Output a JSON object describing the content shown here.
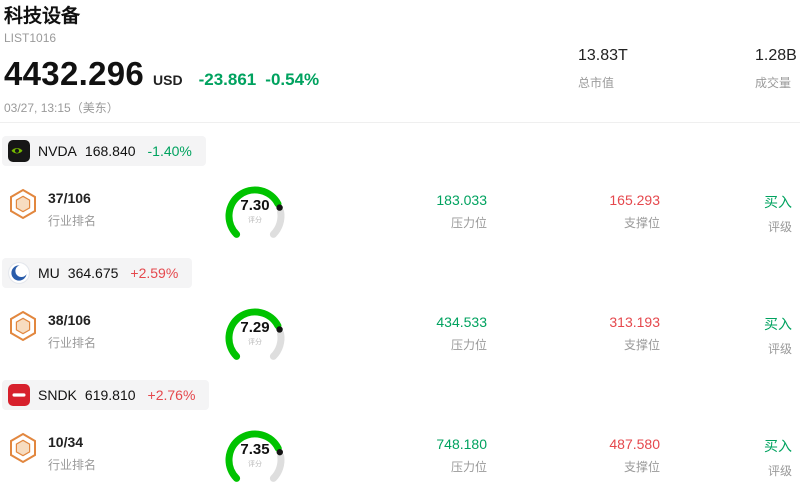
{
  "header": {
    "title": "科技设备",
    "subtitle": "LIST1016",
    "price": "4432.296",
    "currency": "USD",
    "change": "-23.861",
    "change_pct": "-0.54%",
    "change_dir": "down",
    "timestamp": "03/27, 13:15（美东）",
    "stats": [
      {
        "value": "13.83T",
        "label": "总市值"
      },
      {
        "value": "1.28B",
        "label": "成交量"
      }
    ]
  },
  "labels": {
    "rank": "行业排名",
    "score": "评分",
    "pressure": "压力位",
    "support": "支撑位",
    "rating": "评级"
  },
  "colors": {
    "up": "#e5484d",
    "down": "#00a25f",
    "gauge": "#00c300",
    "track": "#dedede"
  },
  "stocks": [
    {
      "ticker": "NVDA",
      "price": "168.840",
      "change": "-1.40%",
      "dir": "down",
      "rank": "37/106",
      "score": "7.30",
      "pressure": "183.033",
      "support": "165.293",
      "rating": "买入"
    },
    {
      "ticker": "MU",
      "price": "364.675",
      "change": "+2.59%",
      "dir": "up",
      "rank": "38/106",
      "score": "7.29",
      "pressure": "434.533",
      "support": "313.193",
      "rating": "买入"
    },
    {
      "ticker": "SNDK",
      "price": "619.810",
      "change": "+2.76%",
      "dir": "up",
      "rank": "10/34",
      "score": "7.35",
      "pressure": "748.180",
      "support": "487.580",
      "rating": "买入"
    }
  ]
}
